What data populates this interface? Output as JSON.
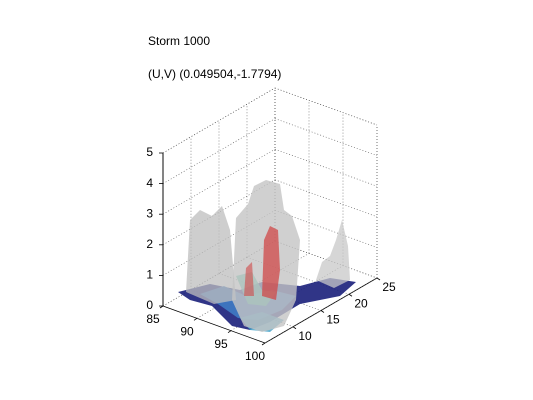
{
  "chart_data": {
    "type": "isosurface3d",
    "title": "Storm 1000",
    "subtitle": "(U,V) (0.049504,-1.7794)",
    "xlim": [
      85,
      100
    ],
    "xticks": [
      85,
      90,
      95,
      100
    ],
    "ylim": [
      5,
      25
    ],
    "yticks": [
      10,
      15,
      20,
      25
    ],
    "zlim": [
      0,
      5
    ],
    "zticks": [
      0,
      1,
      2,
      3,
      4,
      5
    ],
    "grid": true
  }
}
